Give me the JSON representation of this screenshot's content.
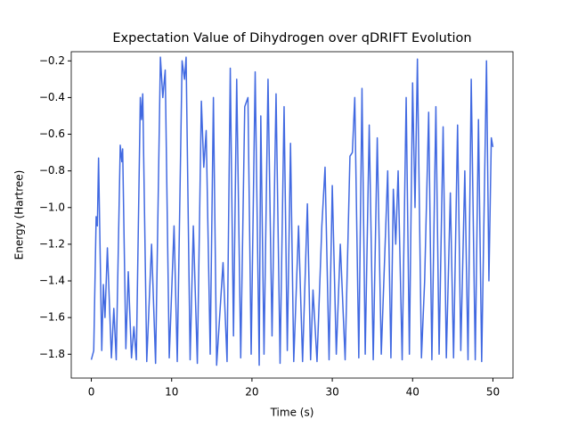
{
  "chart_data": {
    "type": "line",
    "title": "Expectation Value of Dihydrogen over qDRIFT Evolution",
    "x_label": "Time (s)",
    "y_label": "Energy (Hartree)",
    "x": [
      0,
      0.3,
      0.6,
      0.75,
      0.9,
      1.3,
      1.5,
      1.7,
      2.0,
      2.5,
      2.8,
      3.1,
      3.6,
      3.8,
      3.9,
      4.3,
      4.6,
      5.0,
      5.3,
      5.6,
      6.1,
      6.25,
      6.4,
      6.9,
      7.5,
      8.0,
      8.6,
      8.9,
      9.2,
      9.7,
      10.3,
      10.7,
      11.3,
      11.6,
      11.8,
      12.3,
      12.7,
      13.2,
      13.7,
      14.0,
      14.3,
      14.8,
      15.2,
      15.6,
      16.4,
      16.9,
      17.3,
      17.7,
      18.1,
      18.6,
      19.1,
      19.5,
      19.9,
      20.4,
      20.9,
      21.1,
      21.5,
      22.0,
      22.5,
      23.0,
      23.5,
      24.0,
      24.4,
      24.8,
      25.2,
      25.8,
      26.3,
      26.9,
      27.3,
      27.6,
      28.1,
      28.7,
      29.1,
      29.6,
      30.0,
      30.5,
      31.0,
      31.6,
      32.2,
      32.5,
      32.8,
      33.3,
      33.7,
      34.1,
      34.6,
      35.1,
      35.6,
      36.1,
      36.9,
      37.3,
      37.6,
      37.9,
      38.2,
      38.7,
      39.2,
      39.6,
      40.0,
      40.3,
      40.6,
      41.1,
      41.5,
      42.0,
      42.4,
      42.9,
      43.3,
      43.8,
      44.2,
      44.7,
      45.1,
      45.6,
      46.0,
      46.5,
      46.9,
      47.3,
      47.8,
      48.2,
      48.6,
      49.2,
      49.5,
      49.8,
      50.0
    ],
    "series": [
      {
        "color": "#4169e1",
        "values": [
          -1.83,
          -1.78,
          -1.05,
          -1.1,
          -0.73,
          -1.78,
          -1.42,
          -1.6,
          -1.22,
          -1.82,
          -1.55,
          -1.83,
          -0.66,
          -0.75,
          -0.68,
          -1.77,
          -1.35,
          -1.82,
          -1.65,
          -1.83,
          -0.4,
          -0.52,
          -0.38,
          -1.84,
          -1.2,
          -1.85,
          -0.18,
          -0.4,
          -0.25,
          -1.82,
          -1.1,
          -1.84,
          -0.2,
          -0.3,
          -0.18,
          -1.83,
          -1.1,
          -1.85,
          -0.42,
          -0.78,
          -0.58,
          -1.8,
          -0.4,
          -1.86,
          -1.3,
          -1.84,
          -0.24,
          -1.7,
          -0.3,
          -1.82,
          -0.45,
          -0.4,
          -1.8,
          -0.26,
          -1.86,
          -0.5,
          -1.8,
          -0.3,
          -1.7,
          -0.38,
          -1.85,
          -0.45,
          -1.78,
          -0.65,
          -1.84,
          -1.1,
          -1.84,
          -0.98,
          -1.83,
          -1.45,
          -1.84,
          -1.1,
          -0.78,
          -1.83,
          -0.88,
          -1.8,
          -1.2,
          -1.83,
          -0.72,
          -0.7,
          -0.4,
          -1.82,
          -0.35,
          -1.8,
          -0.55,
          -1.83,
          -0.62,
          -1.8,
          -0.8,
          -1.82,
          -0.9,
          -1.2,
          -0.8,
          -1.83,
          -0.4,
          -1.8,
          -0.32,
          -1.0,
          -0.19,
          -1.82,
          -1.4,
          -0.48,
          -1.83,
          -0.45,
          -1.8,
          -0.56,
          -1.82,
          -0.92,
          -1.82,
          -0.55,
          -1.78,
          -0.8,
          -1.83,
          -0.3,
          -1.83,
          -0.52,
          -1.84,
          -0.2,
          -1.4,
          -0.62,
          -0.67
        ]
      }
    ],
    "xlim": [
      -2.5,
      52.5
    ],
    "ylim": [
      -1.93,
      -0.15
    ],
    "xticks": [
      0,
      10,
      20,
      30,
      40,
      50
    ],
    "yticks": [
      {
        "value": -1.8,
        "label": "−1.8"
      },
      {
        "value": -1.6,
        "label": "−1.6"
      },
      {
        "value": -1.4,
        "label": "−1.4"
      },
      {
        "value": -1.2,
        "label": "−1.2"
      },
      {
        "value": -1.0,
        "label": "−1.0"
      },
      {
        "value": -0.8,
        "label": "−0.8"
      },
      {
        "value": -0.6,
        "label": "−0.6"
      },
      {
        "value": -0.4,
        "label": "−0.4"
      },
      {
        "value": -0.2,
        "label": "−0.2"
      }
    ]
  }
}
